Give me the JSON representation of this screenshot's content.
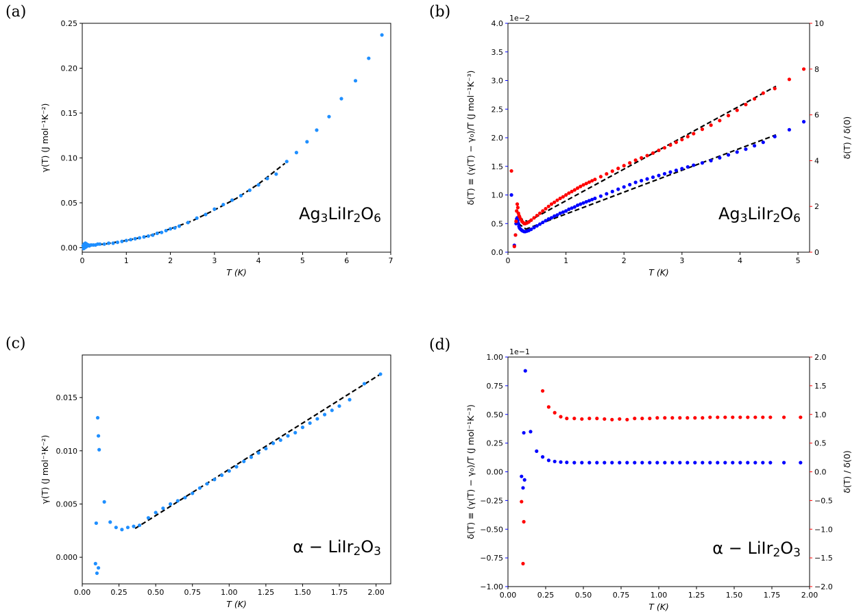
{
  "colors": {
    "light_blue": "#1f8fff",
    "blue": "#0000ff",
    "red": "#ff0000",
    "fit": "#000000"
  },
  "chart_data": [
    {
      "panel": "(a)",
      "type": "scatter",
      "xlabel": "T (K)",
      "ylabel": "γ(T) (J mol⁻¹K⁻²)",
      "xlim": [
        0,
        7
      ],
      "ylim": [
        -0.005,
        0.25
      ],
      "xticks": [
        "0",
        "1",
        "2",
        "3",
        "4",
        "5",
        "6",
        "7"
      ],
      "yticks": [
        "0.00",
        "0.05",
        "0.10",
        "0.15",
        "0.20",
        "0.25"
      ],
      "annotation": "Ag3LiIr2O6",
      "series": [
        {
          "color": "light_blue",
          "x": [
            0.02,
            0.03,
            0.04,
            0.05,
            0.06,
            0.07,
            0.08,
            0.09,
            0.1,
            0.11,
            0.12,
            0.14,
            0.16,
            0.2,
            0.25,
            0.3,
            0.35,
            0.4,
            0.5,
            0.6,
            0.7,
            0.8,
            0.9,
            1.0,
            1.1,
            1.2,
            1.3,
            1.4,
            1.5,
            1.6,
            1.7,
            1.8,
            1.9,
            2.0,
            2.1,
            2.2,
            2.4,
            2.6,
            2.8,
            3.0,
            3.2,
            3.4,
            3.6,
            3.8,
            4.0,
            4.2,
            4.4,
            4.64,
            4.86,
            5.1,
            5.32,
            5.6,
            5.88,
            6.2,
            6.5,
            6.8
          ],
          "y": [
            0.002,
            -0.001,
            0.004,
            0.003,
            0.0,
            0.005,
            0.003,
            0.001,
            0.004,
            0.002,
            0.003,
            0.003,
            0.002,
            0.003,
            0.003,
            0.003,
            0.004,
            0.004,
            0.004,
            0.005,
            0.005,
            0.006,
            0.007,
            0.008,
            0.009,
            0.01,
            0.011,
            0.012,
            0.013,
            0.014,
            0.016,
            0.017,
            0.019,
            0.021,
            0.022,
            0.024,
            0.028,
            0.033,
            0.037,
            0.043,
            0.048,
            0.053,
            0.058,
            0.064,
            0.07,
            0.077,
            0.082,
            0.096,
            0.106,
            0.118,
            0.131,
            0.146,
            0.166,
            0.186,
            0.211,
            0.237
          ]
        }
      ],
      "fit": {
        "x": [
          0.2,
          0.5,
          1.0,
          1.5,
          2.0,
          2.5,
          3.0,
          3.5,
          4.0,
          4.6
        ],
        "y": [
          0.003,
          0.004,
          0.008,
          0.013,
          0.021,
          0.03,
          0.042,
          0.055,
          0.071,
          0.094
        ]
      }
    },
    {
      "panel": "(b)",
      "type": "scatter",
      "xlabel": "T (K)",
      "ylabel": "δ(T) ≡ (γ(T) − γ₀)/T (J mol⁻¹K⁻³)",
      "ylabel_right": "δ(T) / δ(0)",
      "xlim": [
        0,
        5.2
      ],
      "ylim": [
        0,
        4.0
      ],
      "ylim_right": [
        0,
        10
      ],
      "offset_label": "1e−2",
      "xticks": [
        "0",
        "1",
        "2",
        "3",
        "4",
        "5"
      ],
      "yticks": [
        "0.0",
        "0.5",
        "1.0",
        "1.5",
        "2.0",
        "2.5",
        "3.0",
        "3.5",
        "4.0"
      ],
      "yticks_right": [
        "0",
        "2",
        "4",
        "6",
        "8",
        "10"
      ],
      "annotation": "Ag3LiIr2O6",
      "series": [
        {
          "color": "blue",
          "axis": "left",
          "x": [
            0.06,
            0.11,
            0.13,
            0.14,
            0.15,
            0.16,
            0.17,
            0.18,
            0.19,
            0.2,
            0.22,
            0.24,
            0.26,
            0.28,
            0.3,
            0.33,
            0.36,
            0.4,
            0.45,
            0.5,
            0.55,
            0.6,
            0.65,
            0.7,
            0.75,
            0.8,
            0.85,
            0.9,
            0.95,
            1.0,
            1.05,
            1.1,
            1.15,
            1.2,
            1.25,
            1.3,
            1.35,
            1.4,
            1.45,
            1.5,
            1.6,
            1.7,
            1.8,
            1.9,
            2.0,
            2.1,
            2.2,
            2.3,
            2.4,
            2.5,
            2.6,
            2.7,
            2.8,
            2.9,
            3.0,
            3.1,
            3.2,
            3.35,
            3.5,
            3.65,
            3.8,
            3.95,
            4.1,
            4.25,
            4.4,
            4.6,
            4.85,
            5.1
          ],
          "y": [
            1.0,
            0.12,
            0.3,
            0.5,
            0.58,
            0.6,
            0.55,
            0.5,
            0.45,
            0.42,
            0.4,
            0.38,
            0.37,
            0.36,
            0.36,
            0.37,
            0.38,
            0.4,
            0.43,
            0.46,
            0.49,
            0.52,
            0.55,
            0.58,
            0.6,
            0.63,
            0.65,
            0.68,
            0.7,
            0.72,
            0.75,
            0.77,
            0.79,
            0.82,
            0.84,
            0.86,
            0.88,
            0.9,
            0.92,
            0.94,
            0.98,
            1.02,
            1.06,
            1.1,
            1.14,
            1.18,
            1.22,
            1.25,
            1.28,
            1.31,
            1.34,
            1.37,
            1.4,
            1.43,
            1.46,
            1.49,
            1.52,
            1.56,
            1.6,
            1.65,
            1.7,
            1.75,
            1.8,
            1.86,
            1.92,
            2.02,
            2.14,
            2.28
          ]
        },
        {
          "color": "red",
          "axis": "right",
          "x": [
            0.06,
            0.11,
            0.13,
            0.14,
            0.15,
            0.16,
            0.17,
            0.18,
            0.19,
            0.2,
            0.22,
            0.24,
            0.26,
            0.28,
            0.3,
            0.33,
            0.36,
            0.4,
            0.45,
            0.5,
            0.55,
            0.6,
            0.65,
            0.7,
            0.75,
            0.8,
            0.85,
            0.9,
            0.95,
            1.0,
            1.05,
            1.1,
            1.15,
            1.2,
            1.25,
            1.3,
            1.35,
            1.4,
            1.45,
            1.5,
            1.6,
            1.7,
            1.8,
            1.9,
            2.0,
            2.1,
            2.2,
            2.3,
            2.4,
            2.5,
            2.6,
            2.7,
            2.8,
            2.9,
            3.0,
            3.1,
            3.2,
            3.35,
            3.5,
            3.65,
            3.8,
            3.95,
            4.1,
            4.25,
            4.4,
            4.6,
            4.85,
            5.1
          ],
          "y": [
            3.55,
            0.25,
            0.75,
            1.35,
            1.8,
            2.1,
            1.95,
            1.7,
            1.6,
            1.55,
            1.45,
            1.35,
            1.3,
            1.25,
            1.25,
            1.28,
            1.32,
            1.4,
            1.5,
            1.6,
            1.7,
            1.8,
            1.9,
            2.0,
            2.1,
            2.18,
            2.27,
            2.35,
            2.42,
            2.5,
            2.58,
            2.65,
            2.72,
            2.8,
            2.87,
            2.94,
            3.0,
            3.06,
            3.12,
            3.18,
            3.3,
            3.42,
            3.54,
            3.66,
            3.78,
            3.9,
            4.02,
            4.12,
            4.22,
            4.33,
            4.45,
            4.56,
            4.68,
            4.8,
            4.92,
            5.05,
            5.18,
            5.37,
            5.55,
            5.75,
            5.97,
            6.2,
            6.45,
            6.7,
            6.95,
            7.15,
            7.55,
            8.0
          ]
        }
      ],
      "fits": [
        {
          "axis": "left",
          "x": [
            0.3,
            4.62
          ],
          "y": [
            0.4,
            2.05
          ]
        },
        {
          "axis": "left",
          "x": [
            0.18,
            0.38
          ],
          "y": [
            0.5,
            0.35
          ]
        },
        {
          "axis": "right",
          "x": [
            0.35,
            4.62
          ],
          "y": [
            1.35,
            7.25
          ]
        },
        {
          "axis": "right",
          "x": [
            0.18,
            0.38
          ],
          "y": [
            1.5,
            1.3
          ]
        }
      ]
    },
    {
      "panel": "(c)",
      "type": "scatter",
      "xlabel": "T (K)",
      "ylabel": "γ(T) (J mol⁻¹K⁻²)",
      "xlim": [
        0,
        2.1
      ],
      "ylim": [
        -0.0025,
        0.019
      ],
      "xticks": [
        "0.00",
        "0.25",
        "0.50",
        "0.75",
        "1.00",
        "1.25",
        "1.50",
        "1.75",
        "2.00"
      ],
      "yticks": [
        "0.000",
        "0.005",
        "0.010",
        "0.015"
      ],
      "annotation": "α − LiIr2O3",
      "series": [
        {
          "color": "light_blue",
          "x": [
            0.09,
            0.095,
            0.1,
            0.105,
            0.11,
            0.11,
            0.115,
            0.15,
            0.19,
            0.23,
            0.27,
            0.31,
            0.35,
            0.39,
            0.45,
            0.5,
            0.55,
            0.6,
            0.65,
            0.7,
            0.75,
            0.8,
            0.85,
            0.9,
            0.95,
            1.0,
            1.05,
            1.1,
            1.15,
            1.2,
            1.25,
            1.3,
            1.35,
            1.4,
            1.45,
            1.5,
            1.55,
            1.6,
            1.65,
            1.7,
            1.75,
            1.82,
            1.92,
            2.03
          ],
          "y": [
            -0.0006,
            0.0032,
            -0.0015,
            0.0131,
            0.0114,
            -0.001,
            0.0101,
            0.0052,
            0.0033,
            0.0028,
            0.0026,
            0.0028,
            0.0029,
            0.003,
            0.0037,
            0.0042,
            0.0046,
            0.005,
            0.0053,
            0.0056,
            0.006,
            0.0065,
            0.0069,
            0.0073,
            0.0077,
            0.0081,
            0.0085,
            0.009,
            0.0094,
            0.0098,
            0.0102,
            0.0107,
            0.011,
            0.0114,
            0.0117,
            0.0122,
            0.0126,
            0.013,
            0.0134,
            0.0138,
            0.0142,
            0.0148,
            0.0163,
            0.0172
          ]
        }
      ],
      "fit": {
        "x": [
          0.36,
          2.03
        ],
        "y": [
          0.0027,
          0.0172
        ]
      }
    },
    {
      "panel": "(d)",
      "type": "scatter",
      "xlabel": "T (K)",
      "ylabel": "δ(T) ≡ (γ(T) − γ₀)/T (J mol⁻¹K⁻³)",
      "ylabel_right": "δ(T) / δ(0)",
      "xlim": [
        0,
        2.0
      ],
      "ylim": [
        -1.0,
        1.0
      ],
      "ylim_right": [
        -2.0,
        2.0
      ],
      "offset_label": "1e−1",
      "xticks": [
        "0.00",
        "0.25",
        "0.50",
        "0.75",
        "1.00",
        "1.25",
        "1.50",
        "1.75",
        "2.00"
      ],
      "yticks": [
        "−1.00",
        "−0.75",
        "−0.50",
        "−0.25",
        "0.00",
        "0.25",
        "0.50",
        "0.75",
        "1.00"
      ],
      "yticks_right": [
        "−2.0",
        "−1.5",
        "−1.0",
        "−0.5",
        "0.0",
        "0.5",
        "1.0",
        "1.5",
        "2.0"
      ],
      "annotation": "α − LiIr2O3",
      "series": [
        {
          "color": "blue",
          "axis": "left",
          "x": [
            0.09,
            0.1,
            0.105,
            0.11,
            0.115,
            0.15,
            0.19,
            0.23,
            0.27,
            0.31,
            0.35,
            0.39,
            0.44,
            0.49,
            0.54,
            0.59,
            0.64,
            0.69,
            0.74,
            0.79,
            0.84,
            0.89,
            0.94,
            0.99,
            1.04,
            1.09,
            1.14,
            1.19,
            1.24,
            1.29,
            1.34,
            1.39,
            1.44,
            1.49,
            1.54,
            1.59,
            1.64,
            1.69,
            1.74,
            1.83,
            1.94
          ],
          "y": [
            -0.04,
            -0.14,
            0.34,
            -0.07,
            0.88,
            0.35,
            0.18,
            0.13,
            0.1,
            0.09,
            0.085,
            0.082,
            0.08,
            0.08,
            0.08,
            0.08,
            0.08,
            0.08,
            0.08,
            0.08,
            0.08,
            0.08,
            0.08,
            0.08,
            0.08,
            0.08,
            0.08,
            0.08,
            0.08,
            0.08,
            0.08,
            0.08,
            0.08,
            0.08,
            0.08,
            0.08,
            0.08,
            0.08,
            0.08,
            0.08,
            0.08
          ]
        },
        {
          "color": "red",
          "axis": "right",
          "x": [
            0.09,
            0.1,
            0.105,
            0.23,
            0.27,
            0.31,
            0.35,
            0.39,
            0.44,
            0.49,
            0.54,
            0.59,
            0.64,
            0.69,
            0.74,
            0.79,
            0.84,
            0.89,
            0.94,
            0.99,
            1.04,
            1.09,
            1.14,
            1.19,
            1.24,
            1.29,
            1.34,
            1.39,
            1.44,
            1.49,
            1.54,
            1.59,
            1.64,
            1.69,
            1.74,
            1.83,
            1.94
          ],
          "y": [
            -0.52,
            -1.6,
            -0.87,
            1.41,
            1.13,
            1.03,
            0.96,
            0.93,
            0.93,
            0.92,
            0.93,
            0.93,
            0.92,
            0.91,
            0.92,
            0.91,
            0.93,
            0.93,
            0.93,
            0.94,
            0.94,
            0.94,
            0.94,
            0.94,
            0.94,
            0.94,
            0.95,
            0.95,
            0.95,
            0.95,
            0.95,
            0.95,
            0.95,
            0.95,
            0.95,
            0.95,
            0.95
          ]
        }
      ],
      "fits": []
    }
  ]
}
